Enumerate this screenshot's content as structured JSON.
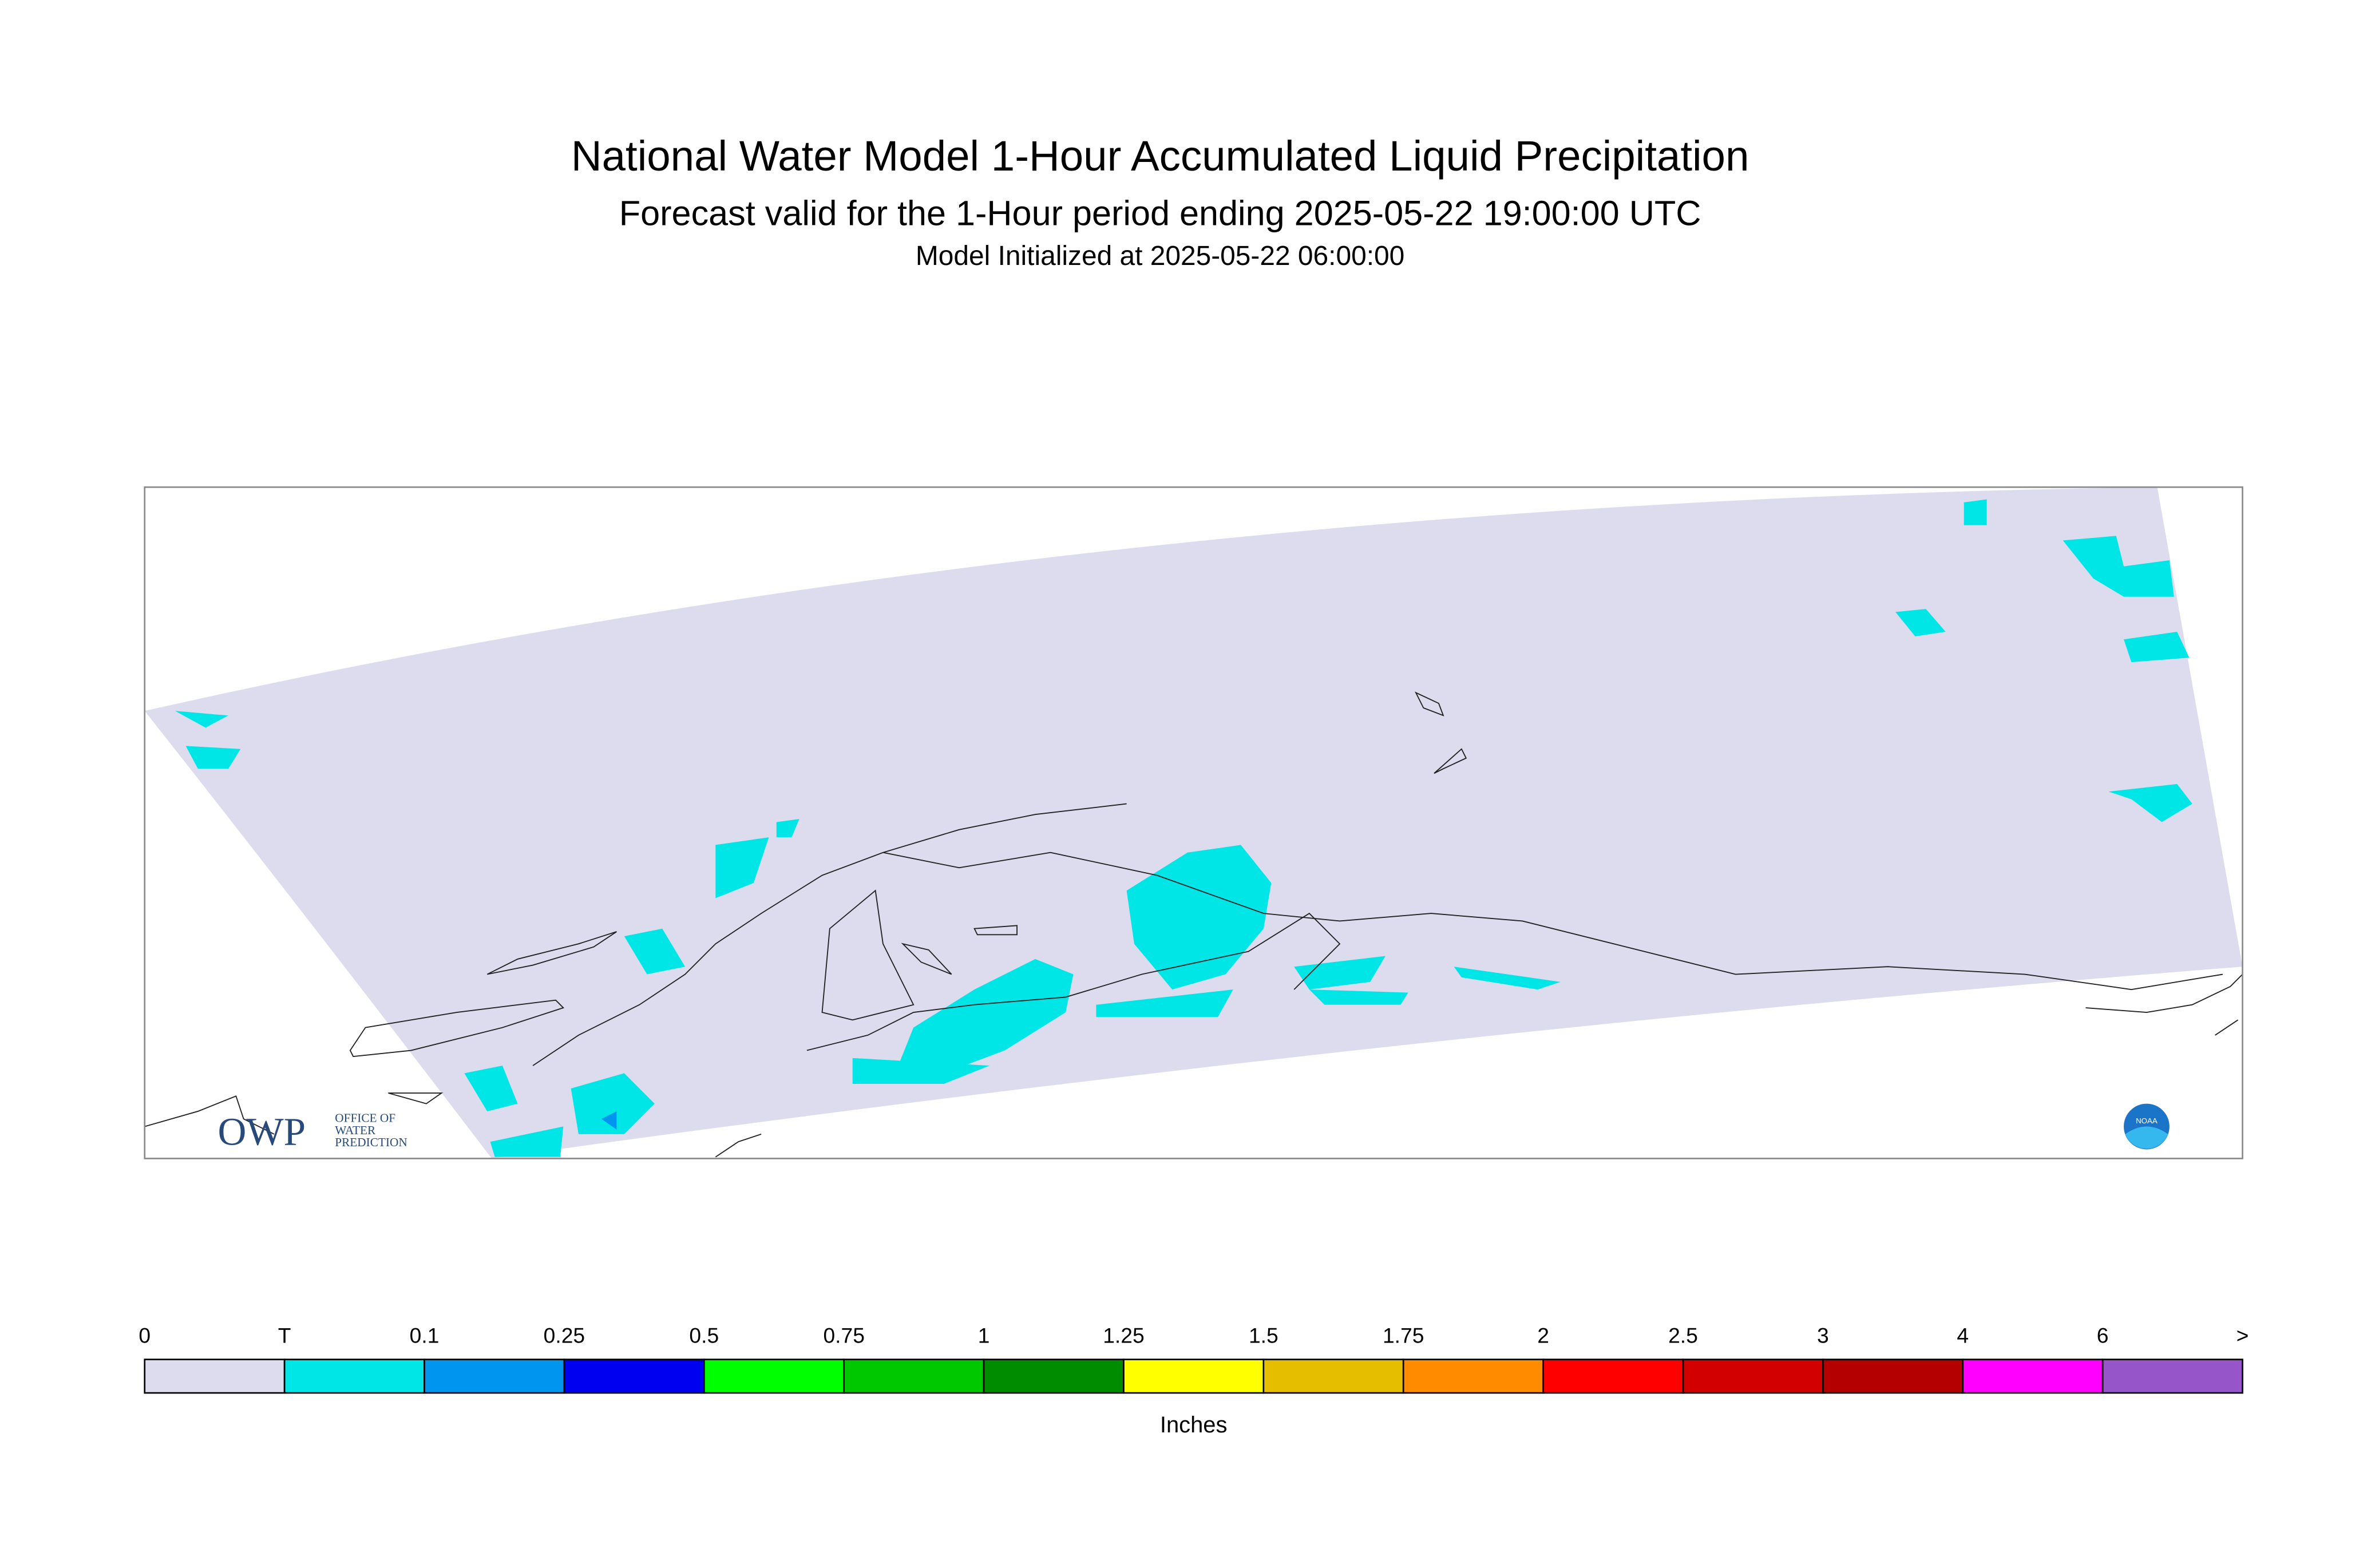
{
  "header": {
    "title": "National Water Model 1-Hour Accumulated Liquid Precipitation",
    "subtitle": "Forecast valid for the 1-Hour period ending 2025-05-22 19:00:00 UTC",
    "initialized": "Model Initialized at 2025-05-22 06:00:00"
  },
  "legend": {
    "labels": [
      "0",
      "T",
      "0.1",
      "0.25",
      "0.5",
      "0.75",
      "1",
      "1.25",
      "1.5",
      "1.75",
      "2",
      "2.5",
      "3",
      "4",
      "6",
      ">"
    ],
    "colors": [
      "#dcdcee",
      "#00e6e6",
      "#0096f0",
      "#0000f0",
      "#00ff00",
      "#00c800",
      "#008c00",
      "#ffff00",
      "#e6be00",
      "#ff8c00",
      "#ff0000",
      "#d20000",
      "#b40000",
      "#ff00ff",
      "#9655c8"
    ],
    "units": "Inches"
  },
  "logos": {
    "owp": "OWP",
    "owp_lines": [
      "OFFICE OF",
      "WATER",
      "PREDICTION"
    ],
    "noaa": "NOAA"
  }
}
